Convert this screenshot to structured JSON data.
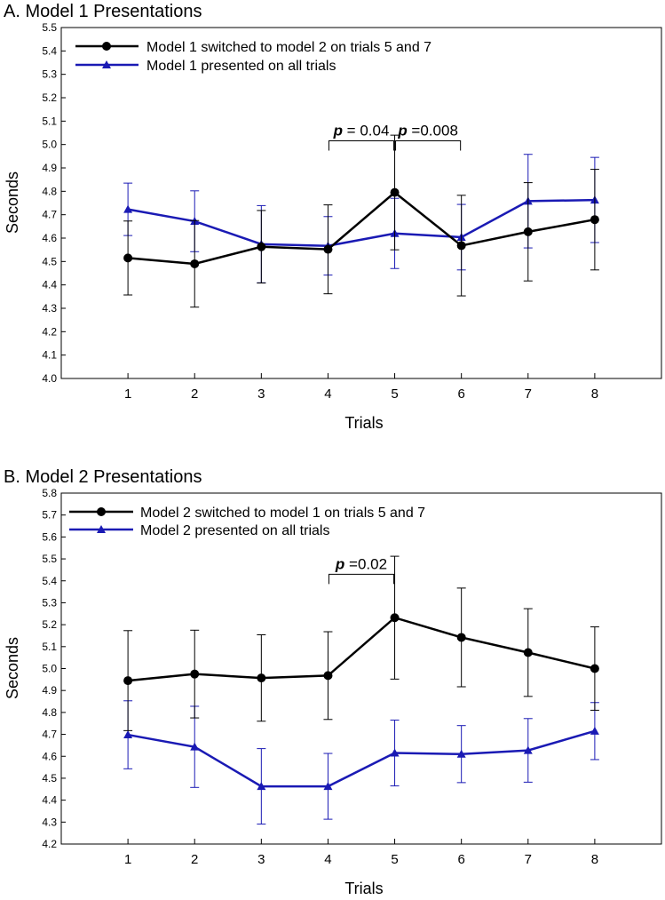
{
  "chart_data": [
    {
      "type": "line",
      "title": "A. Model 1 Presentations",
      "xlabel": "Trials",
      "ylabel": "Seconds",
      "x": [
        1,
        2,
        3,
        4,
        5,
        6,
        7,
        8
      ],
      "xlim": [
        0,
        9
      ],
      "ylim": [
        4.0,
        5.5
      ],
      "ytick_step": 0.1,
      "yticks": [
        "4.0",
        "4.1",
        "4.2",
        "4.3",
        "4.4",
        "4.5",
        "4.6",
        "4.7",
        "4.8",
        "4.9",
        "5.0",
        "5.1",
        "5.2",
        "5.3",
        "5.4",
        "5.5"
      ],
      "xticks": [
        "1",
        "2",
        "3",
        "4",
        "5",
        "6",
        "7",
        "8"
      ],
      "series": [
        {
          "name": "Model 1 switched to model 2 on trials 5 and 7",
          "color": "#000000",
          "marker": "circle",
          "values": [
            4.515,
            4.49,
            4.563,
            4.552,
            4.795,
            4.568,
            4.627,
            4.679
          ],
          "errors": [
            0.158,
            0.185,
            0.155,
            0.19,
            0.245,
            0.215,
            0.21,
            0.215
          ]
        },
        {
          "name": "Model 1 presented on all trials",
          "color": "#1a1ab4",
          "marker": "triangle",
          "values": [
            4.723,
            4.672,
            4.574,
            4.567,
            4.62,
            4.604,
            4.758,
            4.763
          ],
          "errors": [
            0.112,
            0.13,
            0.165,
            0.125,
            0.15,
            0.14,
            0.2,
            0.182
          ]
        }
      ],
      "annotations": [
        {
          "x1": 4,
          "x2": 5,
          "y": 5.016,
          "p": "p",
          "text": " = 0.04"
        },
        {
          "x1": 5,
          "x2": 6,
          "y": 5.016,
          "p": "p",
          "text": " =0.008"
        }
      ]
    },
    {
      "type": "line",
      "title": "B. Model 2 Presentations",
      "xlabel": "Trials",
      "ylabel": "Seconds",
      "x": [
        1,
        2,
        3,
        4,
        5,
        6,
        7,
        8
      ],
      "xlim": [
        0,
        9
      ],
      "ylim": [
        4.2,
        5.8
      ],
      "ytick_step": 0.1,
      "yticks": [
        "4.2",
        "4.3",
        "4.4",
        "4.5",
        "4.6",
        "4.7",
        "4.8",
        "4.9",
        "5.0",
        "5.1",
        "5.2",
        "5.3",
        "5.4",
        "5.5",
        "5.6",
        "5.7",
        "5.8"
      ],
      "xticks": [
        "1",
        "2",
        "3",
        "4",
        "5",
        "6",
        "7",
        "8"
      ],
      "series": [
        {
          "name": "Model 2 switched to model 1 on trials 5 and 7",
          "color": "#000000",
          "marker": "circle",
          "values": [
            4.945,
            4.975,
            4.957,
            4.968,
            5.232,
            5.142,
            5.073,
            5.0
          ],
          "errors": [
            0.228,
            0.2,
            0.197,
            0.2,
            0.28,
            0.225,
            0.2,
            0.19
          ]
        },
        {
          "name": "Model 2 presented on all trials",
          "color": "#1a1ab4",
          "marker": "triangle",
          "values": [
            4.698,
            4.643,
            4.463,
            4.463,
            4.615,
            4.61,
            4.627,
            4.715
          ],
          "errors": [
            0.155,
            0.185,
            0.172,
            0.15,
            0.15,
            0.13,
            0.145,
            0.13
          ]
        }
      ],
      "annotations": [
        {
          "x1": 4,
          "x2": 5,
          "y": 5.43,
          "p": "p",
          "text": " =0.02"
        }
      ]
    }
  ]
}
